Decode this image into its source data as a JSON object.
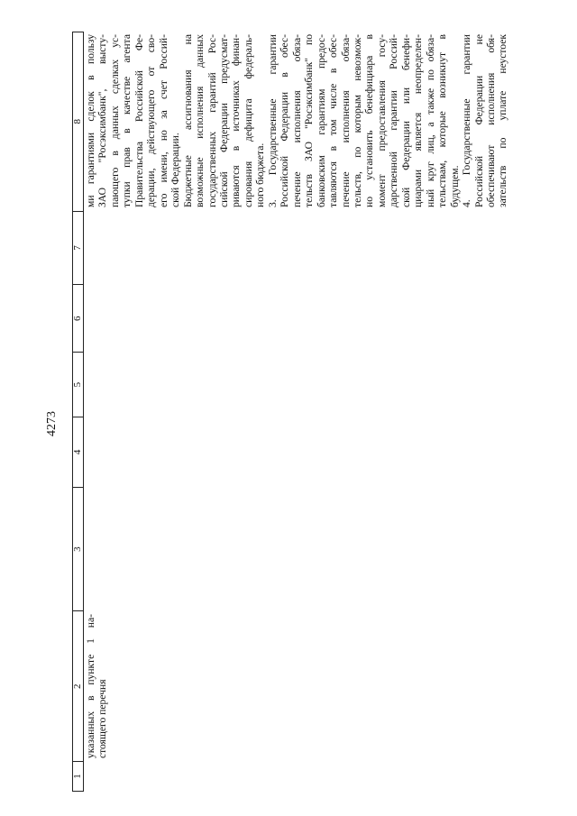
{
  "page_number": "4273",
  "table": {
    "headers": [
      "1",
      "2",
      "3",
      "4",
      "5",
      "6",
      "7",
      "8"
    ],
    "column2_lines": [
      {
        "text": "указанных в пункте 1 на-",
        "last": false
      },
      {
        "text": "стоящего перечня",
        "last": true
      }
    ],
    "column8_lines": [
      {
        "text": "ми гарантиями сделок в пользу",
        "last": false
      },
      {
        "text": "ЗАО \"Росэксимбанк\", высту-",
        "last": false
      },
      {
        "text": "пающего в данных сделках ус-",
        "last": false
      },
      {
        "text": "тупки прав в качестве агента",
        "last": false
      },
      {
        "text": "Правительства Российской Фе-",
        "last": false
      },
      {
        "text": "дерации, действующего от сво-",
        "last": false
      },
      {
        "text": "его имени, но за счет Россий-",
        "last": false
      },
      {
        "text": "ской Федерации.",
        "last": true
      },
      {
        "text": "Бюджетные ассигнования на",
        "last": false
      },
      {
        "text": "возможные исполнения данных",
        "last": false
      },
      {
        "text": "государственных гарантий Рос-",
        "last": false
      },
      {
        "text": "сийской Федерации предусмат-",
        "last": false
      },
      {
        "text": "риваются в источниках финан-",
        "last": false
      },
      {
        "text": "сирования дефицита федераль-",
        "last": false
      },
      {
        "text": "ного бюджета.",
        "last": true
      },
      {
        "text": "3. Государственные гарантии",
        "last": false
      },
      {
        "text": "Российской Федерации в обес-",
        "last": false
      },
      {
        "text": "печение исполнения обяза-",
        "last": false
      },
      {
        "text": "тельств ЗАО \"Росэксимбанк\" по",
        "last": false
      },
      {
        "text": "банковским гарантиям предос-",
        "last": false
      },
      {
        "text": "тавляются в том числе в обес-",
        "last": false
      },
      {
        "text": "печение исполнения обяза-",
        "last": false
      },
      {
        "text": "тельств, по которым невозмож-",
        "last": false
      },
      {
        "text": "но установить бенефициара в",
        "last": false
      },
      {
        "text": "момент предоставления госу-",
        "last": false
      },
      {
        "text": "дарственной гарантии Россий-",
        "last": false
      },
      {
        "text": "ской Федерации или бенефи-",
        "last": false
      },
      {
        "text": "циарами является неопределен-",
        "last": false
      },
      {
        "text": "ный круг лиц, а также по обяза-",
        "last": false
      },
      {
        "text": "тельствам, которые возникнут в",
        "last": false
      },
      {
        "text": "будущем.",
        "last": true
      },
      {
        "text": "4. Государственные гарантии",
        "last": false
      },
      {
        "text": "Российской Федерации не",
        "last": false
      },
      {
        "text": "обеспечивают исполнения обя-",
        "last": false
      },
      {
        "text": "зательств по уплате неустоек",
        "last": false
      }
    ]
  }
}
